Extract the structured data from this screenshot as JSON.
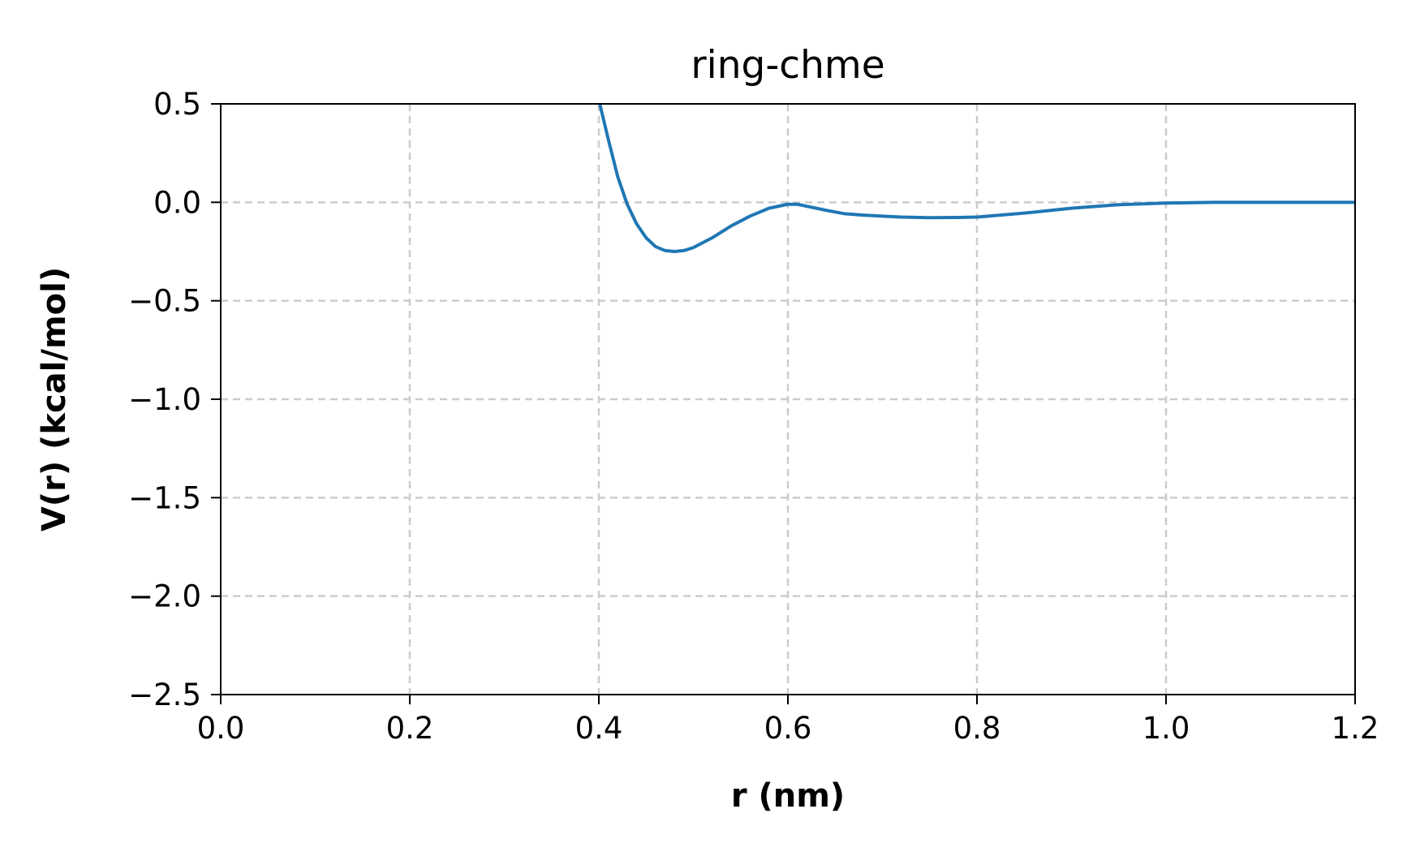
{
  "chart_data": {
    "type": "line",
    "title": "ring-chme",
    "xlabel": "r (nm)",
    "ylabel": "V(r) (kcal/mol)",
    "xlim": [
      0.0,
      1.2
    ],
    "ylim": [
      -2.5,
      0.5
    ],
    "xticks": [
      "0.0",
      "0.2",
      "0.4",
      "0.6",
      "0.8",
      "1.0",
      "1.2"
    ],
    "yticks": [
      "0.5",
      "0.0",
      "−0.5",
      "−1.0",
      "−1.5",
      "−2.0",
      "−2.5"
    ],
    "grid": true,
    "grid_style": "dashed",
    "legend": "none",
    "series_color": "#1f77b4",
    "series": [
      {
        "x": [
          0.4,
          0.41,
          0.42,
          0.43,
          0.44,
          0.45,
          0.46,
          0.47,
          0.48,
          0.49,
          0.5,
          0.52,
          0.54,
          0.56,
          0.58,
          0.6,
          0.61,
          0.62,
          0.64,
          0.66,
          0.68,
          0.7,
          0.72,
          0.75,
          0.78,
          0.8,
          0.85,
          0.9,
          0.95,
          1.0,
          1.05,
          1.1,
          1.15,
          1.2
        ],
        "y": [
          0.52,
          0.32,
          0.13,
          -0.01,
          -0.11,
          -0.18,
          -0.225,
          -0.245,
          -0.25,
          -0.245,
          -0.23,
          -0.18,
          -0.12,
          -0.07,
          -0.03,
          -0.01,
          -0.01,
          -0.02,
          -0.04,
          -0.058,
          -0.065,
          -0.07,
          -0.075,
          -0.078,
          -0.077,
          -0.075,
          -0.055,
          -0.03,
          -0.012,
          -0.004,
          0.0,
          0.0,
          0.0,
          0.0
        ]
      }
    ]
  }
}
